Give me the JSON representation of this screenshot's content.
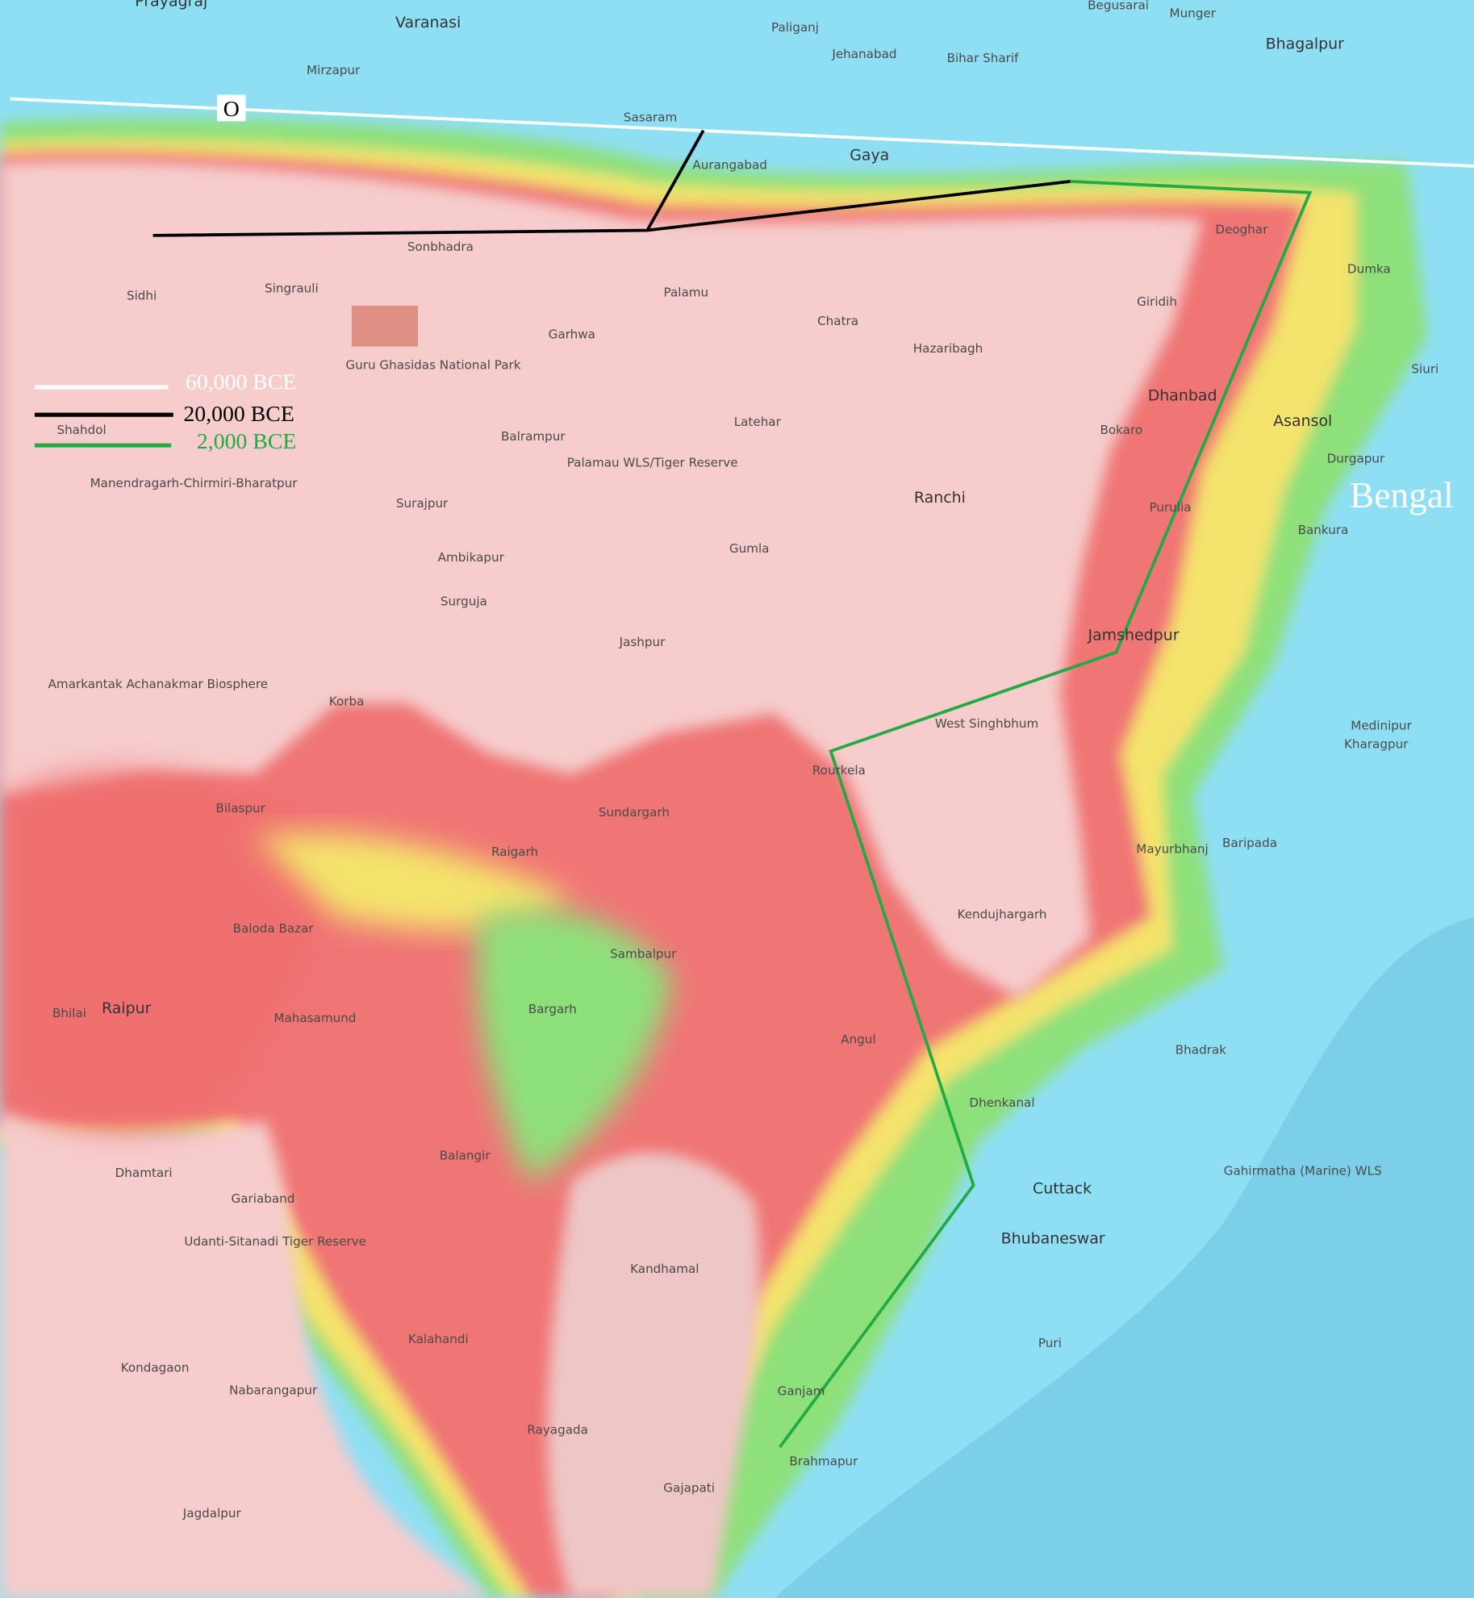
{
  "map": {
    "colors": {
      "lowland": "#8fdff4",
      "sea": "#7bcfe9",
      "plateau": "#f6cccc",
      "high": "#f07070",
      "mid": "#f5e86a",
      "low": "#8ee07a"
    },
    "region_label": "Bengal",
    "marker_label": "O",
    "legend": [
      {
        "label": "60,000 BCE",
        "color": "#ffffff"
      },
      {
        "label": "20,000 BCE",
        "color": "#000000"
      },
      {
        "label": "2,000 BCE",
        "color": "#22aa44"
      }
    ],
    "places": [
      "Prayagraj",
      "Varanasi",
      "Mirzapur",
      "Sasaram",
      "Paliganj",
      "Jehanabad",
      "Bihar Sharif",
      "Begusarai",
      "Munger",
      "Bhagalpur",
      "Aurangabad",
      "Gaya",
      "Deoghar",
      "Dumka",
      "Giridih",
      "Hazaribagh",
      "Chatra",
      "Palamu",
      "Garhwa",
      "Sonbhadra",
      "Singrauli",
      "Sidhi",
      "Shahdol",
      "Latehar",
      "Dhanbad",
      "Bokaro",
      "Asansol",
      "Siuri",
      "Durgapur",
      "Ranchi",
      "Purulia",
      "Bankura",
      "Jamshedpur",
      "Medinipur",
      "Kharagpur",
      "West Singhbhum",
      "Rourkela",
      "Balrampur",
      "Surajpur",
      "Ambikapur",
      "Surguja",
      "Jashpur",
      "Gumla",
      "Korba",
      "Bilaspur",
      "Raigarh",
      "Sundargarh",
      "Sambalpur",
      "Bargarh",
      "Baloda Bazar",
      "Raipur",
      "Bhilai",
      "Mahasamund",
      "Baripada",
      "Mayurbhanj",
      "Kendujhargarh",
      "Angul",
      "Dhenkanal",
      "Bhadrak",
      "Cuttack",
      "Bhubaneswar",
      "Puri",
      "Balangir",
      "Dhamtari",
      "Gariaband",
      "Kandhamal",
      "Kalahandi",
      "Kondagaon",
      "Nabarangapur",
      "Rayagada",
      "Gajapati",
      "Ganjam",
      "Brahmapur",
      "Jagdalpur",
      "Amarkantak Achanakmar Biosphere",
      "Manendragarh-Chirmiri-Bharatpur",
      "Udanti-Sitanadi Tiger Reserve",
      "Gahirmatha (Marine) WLS",
      "Palamau WLS/Tiger Reserve",
      "Guru Ghasidas National Park"
    ]
  }
}
